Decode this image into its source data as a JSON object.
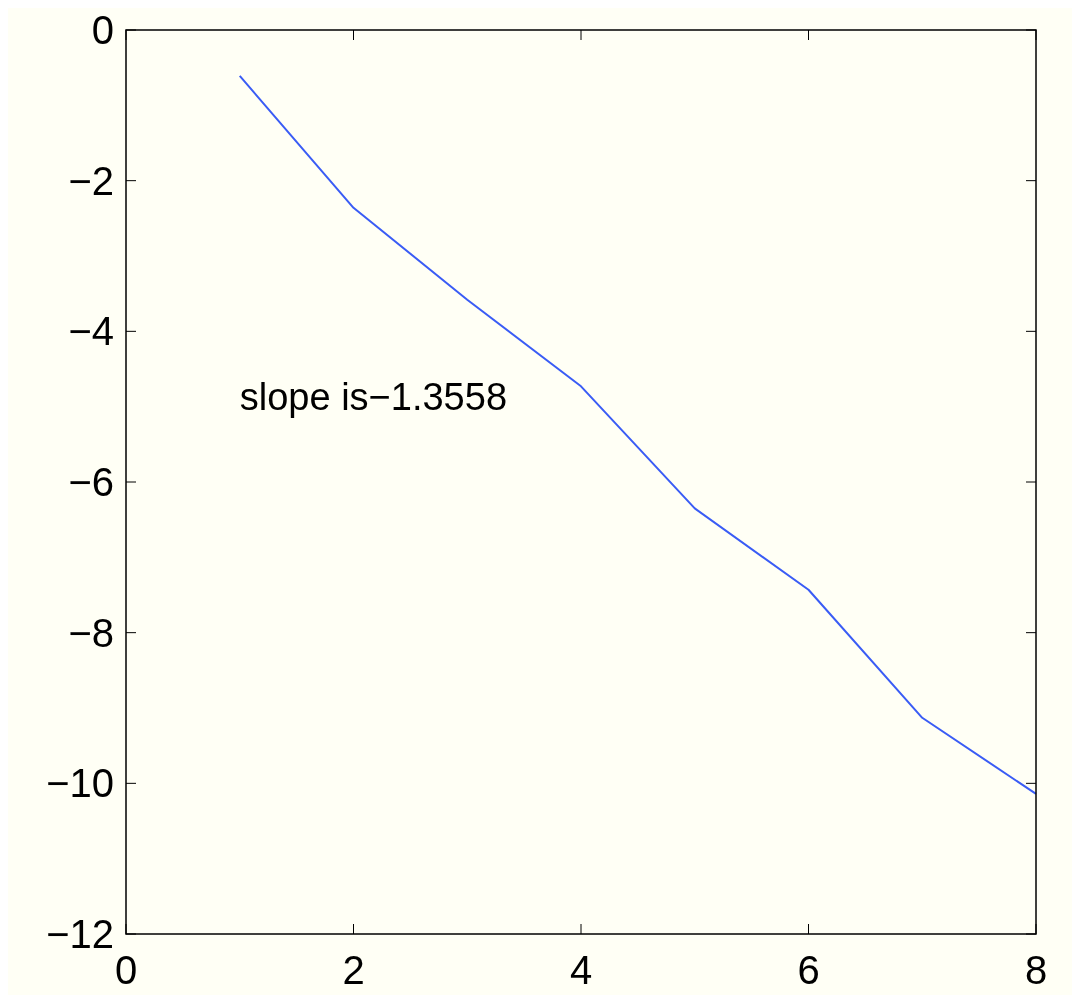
{
  "chart_data": {
    "type": "line",
    "x": [
      1,
      2,
      3,
      4,
      5,
      6,
      7,
      8
    ],
    "series": [
      {
        "color": "#3a5cf5",
        "values": [
          -0.61,
          -2.36,
          -3.58,
          -4.73,
          -6.35,
          -7.43,
          -9.13,
          -10.14
        ]
      }
    ],
    "xlim": [
      0,
      8
    ],
    "xticks": [
      0,
      2,
      4,
      6,
      8
    ],
    "ylim": [
      -12,
      0
    ],
    "yticks": [
      0,
      -2,
      -4,
      -6,
      -8,
      -10,
      -12
    ],
    "marker": "none",
    "line_style": "solid",
    "annotations": [
      "slope is−1.3558"
    ]
  }
}
